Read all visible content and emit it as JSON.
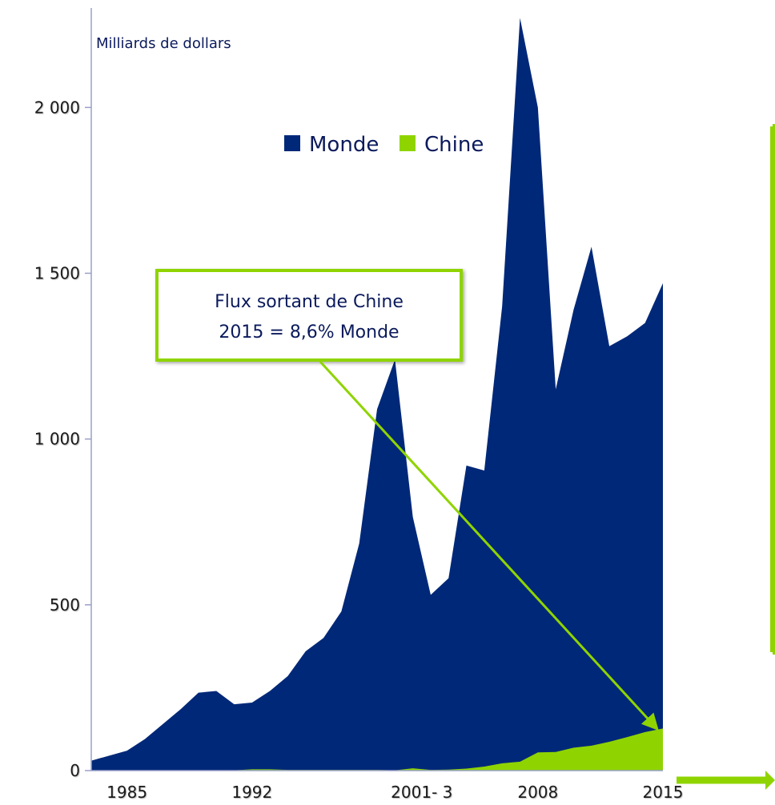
{
  "chart_data": {
    "type": "area",
    "unit_label": "Milliards de dollars",
    "x": [
      1983,
      1984,
      1985,
      1986,
      1987,
      1988,
      1989,
      1990,
      1991,
      1992,
      1993,
      1994,
      1995,
      1996,
      1997,
      1998,
      1999,
      2000,
      2001,
      2002,
      2003,
      2004,
      2005,
      2006,
      2007,
      2008,
      2009,
      2010,
      2011,
      2012,
      2013,
      2014,
      2015
    ],
    "x_tick_labels": [
      {
        "year": 1985,
        "label": "1985"
      },
      {
        "year": 1992,
        "label": "1992"
      },
      {
        "year": 2001.5,
        "label": "2001- 3"
      },
      {
        "year": 2008,
        "label": "2008"
      },
      {
        "year": 2015,
        "label": "2015"
      }
    ],
    "y_ticks": [
      0,
      500,
      1000,
      1500,
      2000
    ],
    "y_tick_labels": [
      "0",
      "500",
      "1 000",
      "1 500",
      "2 000"
    ],
    "ylim": [
      0,
      2300
    ],
    "series": [
      {
        "name": "Monde",
        "color": "#002878",
        "values": [
          30,
          45,
          60,
          95,
          140,
          185,
          235,
          240,
          200,
          205,
          240,
          285,
          360,
          400,
          480,
          685,
          1090,
          1240,
          765,
          530,
          580,
          920,
          905,
          1400,
          2270,
          2000,
          1150,
          1390,
          1580,
          1280,
          1310,
          1350,
          1470
        ]
      },
      {
        "name": "Chine",
        "color": "#8fd400",
        "values": [
          0,
          0,
          0,
          0,
          0,
          0,
          0,
          1,
          1,
          4,
          4,
          2,
          2,
          2,
          2,
          2,
          2,
          1,
          7,
          2,
          3,
          6,
          12,
          22,
          27,
          55,
          56,
          69,
          75,
          87,
          101,
          116,
          127
        ]
      }
    ],
    "legend_position": "top-center",
    "annotation": {
      "lines": [
        "Flux sortant de Chine",
        "2015 = 8,6% Monde"
      ],
      "border_color": "#8fd400",
      "arrow_color": "#8fd400"
    },
    "axis_color": "#9aa0c8",
    "grid": false
  }
}
